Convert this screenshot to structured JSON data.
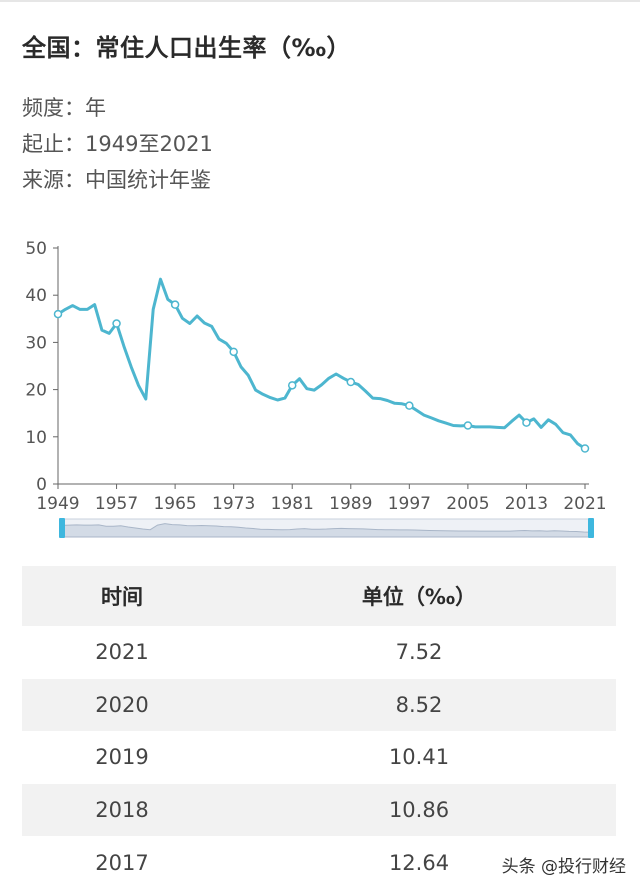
{
  "header": {
    "title": "全国：常住人口出生率（‰）",
    "frequency": "频度：年",
    "range": "起止：1949至2021",
    "source": "来源：中国统计年鉴"
  },
  "colors": {
    "line": "#4db6cf",
    "axis": "#666666",
    "slider": "#3eb7de"
  },
  "chart_data": {
    "type": "line",
    "title": "",
    "xlabel": "",
    "ylabel": "",
    "x": [
      1949,
      1950,
      1951,
      1952,
      1953,
      1954,
      1955,
      1956,
      1957,
      1958,
      1959,
      1960,
      1961,
      1962,
      1963,
      1964,
      1965,
      1966,
      1967,
      1968,
      1969,
      1970,
      1971,
      1972,
      1973,
      1974,
      1975,
      1976,
      1977,
      1978,
      1979,
      1980,
      1981,
      1982,
      1983,
      1984,
      1985,
      1986,
      1987,
      1988,
      1989,
      1990,
      1991,
      1992,
      1993,
      1994,
      1995,
      1996,
      1997,
      1998,
      1999,
      2000,
      2001,
      2002,
      2003,
      2004,
      2005,
      2006,
      2007,
      2008,
      2009,
      2010,
      2011,
      2012,
      2013,
      2014,
      2015,
      2016,
      2017,
      2018,
      2019,
      2020,
      2021
    ],
    "series": [
      {
        "values": [
          36.0,
          37.0,
          37.8,
          37.0,
          37.0,
          38.0,
          32.6,
          31.9,
          34.0,
          29.2,
          24.8,
          20.9,
          18.0,
          37.0,
          43.4,
          39.1,
          38.0,
          35.1,
          34.0,
          35.6,
          34.1,
          33.4,
          30.7,
          29.8,
          28.0,
          24.8,
          23.0,
          19.9,
          19.0,
          18.3,
          17.8,
          18.2,
          20.9,
          22.3,
          20.2,
          19.9,
          21.0,
          22.4,
          23.3,
          22.4,
          21.6,
          21.1,
          19.7,
          18.2,
          18.1,
          17.7,
          17.1,
          17.0,
          16.6,
          15.6,
          14.6,
          14.0,
          13.4,
          12.9,
          12.4,
          12.3,
          12.4,
          12.1,
          12.1,
          12.1,
          12.0,
          11.9,
          13.3,
          14.6,
          13.0,
          13.8,
          12.0,
          13.6,
          12.64,
          10.86,
          10.41,
          8.52,
          7.52
        ]
      }
    ],
    "markers": [
      1949,
      1957,
      1965,
      1973,
      1981,
      1989,
      1997,
      2005,
      2013,
      2021
    ],
    "ylim": [
      0,
      50
    ],
    "yticks": [
      0,
      10,
      20,
      30,
      40,
      50
    ],
    "xticks": [
      1949,
      1957,
      1965,
      1973,
      1981,
      1989,
      1997,
      2005,
      2013,
      2021
    ],
    "grid": false,
    "legend": "none"
  },
  "table": {
    "headers": [
      "时间",
      "单位（‰）"
    ],
    "rows": [
      [
        "2021",
        "7.52"
      ],
      [
        "2020",
        "8.52"
      ],
      [
        "2019",
        "10.41"
      ],
      [
        "2018",
        "10.86"
      ],
      [
        "2017",
        "12.64"
      ]
    ]
  },
  "watermark": "头条 @投行财经"
}
